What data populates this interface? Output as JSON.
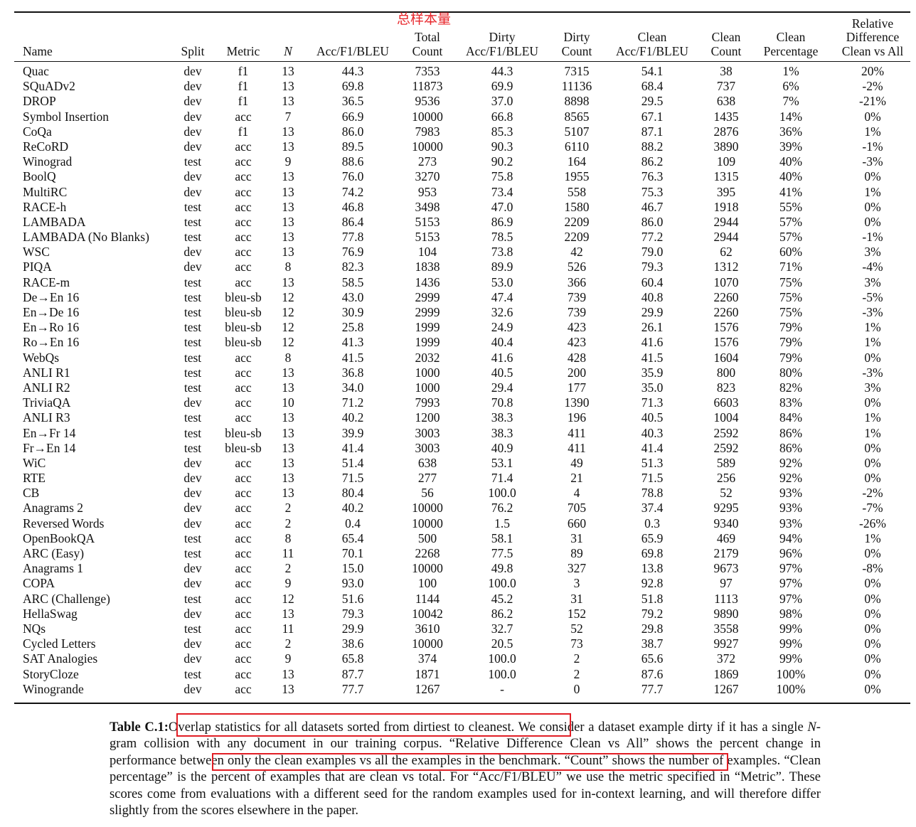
{
  "annotation": "总样本量",
  "columns": [
    {
      "key": "name",
      "lines": [
        "Name"
      ]
    },
    {
      "key": "split",
      "lines": [
        "Split"
      ]
    },
    {
      "key": "metric",
      "lines": [
        "Metric"
      ]
    },
    {
      "key": "n",
      "lines": [
        "N"
      ]
    },
    {
      "key": "acc",
      "lines": [
        "Acc/F1/BLEU"
      ]
    },
    {
      "key": "total",
      "lines": [
        "Total",
        "Count"
      ]
    },
    {
      "key": "dirty_acc",
      "lines": [
        "Dirty",
        "Acc/F1/BLEU"
      ]
    },
    {
      "key": "dirty_count",
      "lines": [
        "Dirty",
        "Count"
      ]
    },
    {
      "key": "clean_acc",
      "lines": [
        "Clean",
        "Acc/F1/BLEU"
      ]
    },
    {
      "key": "clean_count",
      "lines": [
        "Clean",
        "Count"
      ]
    },
    {
      "key": "clean_pct",
      "lines": [
        "Clean",
        "Percentage"
      ]
    },
    {
      "key": "rel_diff",
      "lines": [
        "Relative",
        "Difference",
        "Clean vs All"
      ]
    }
  ],
  "rows": [
    [
      "Quac",
      "dev",
      "f1",
      "13",
      "44.3",
      "7353",
      "44.3",
      "7315",
      "54.1",
      "38",
      "1%",
      "20%"
    ],
    [
      "SQuADv2",
      "dev",
      "f1",
      "13",
      "69.8",
      "11873",
      "69.9",
      "11136",
      "68.4",
      "737",
      "6%",
      "-2%"
    ],
    [
      "DROP",
      "dev",
      "f1",
      "13",
      "36.5",
      "9536",
      "37.0",
      "8898",
      "29.5",
      "638",
      "7%",
      "-21%"
    ],
    [
      "Symbol Insertion",
      "dev",
      "acc",
      "7",
      "66.9",
      "10000",
      "66.8",
      "8565",
      "67.1",
      "1435",
      "14%",
      "0%"
    ],
    [
      "CoQa",
      "dev",
      "f1",
      "13",
      "86.0",
      "7983",
      "85.3",
      "5107",
      "87.1",
      "2876",
      "36%",
      "1%"
    ],
    [
      "ReCoRD",
      "dev",
      "acc",
      "13",
      "89.5",
      "10000",
      "90.3",
      "6110",
      "88.2",
      "3890",
      "39%",
      "-1%"
    ],
    [
      "Winograd",
      "test",
      "acc",
      "9",
      "88.6",
      "273",
      "90.2",
      "164",
      "86.2",
      "109",
      "40%",
      "-3%"
    ],
    [
      "BoolQ",
      "dev",
      "acc",
      "13",
      "76.0",
      "3270",
      "75.8",
      "1955",
      "76.3",
      "1315",
      "40%",
      "0%"
    ],
    [
      "MultiRC",
      "dev",
      "acc",
      "13",
      "74.2",
      "953",
      "73.4",
      "558",
      "75.3",
      "395",
      "41%",
      "1%"
    ],
    [
      "RACE-h",
      "test",
      "acc",
      "13",
      "46.8",
      "3498",
      "47.0",
      "1580",
      "46.7",
      "1918",
      "55%",
      "0%"
    ],
    [
      "LAMBADA",
      "test",
      "acc",
      "13",
      "86.4",
      "5153",
      "86.9",
      "2209",
      "86.0",
      "2944",
      "57%",
      "0%"
    ],
    [
      "LAMBADA (No Blanks)",
      "test",
      "acc",
      "13",
      "77.8",
      "5153",
      "78.5",
      "2209",
      "77.2",
      "2944",
      "57%",
      "-1%"
    ],
    [
      "WSC",
      "dev",
      "acc",
      "13",
      "76.9",
      "104",
      "73.8",
      "42",
      "79.0",
      "62",
      "60%",
      "3%"
    ],
    [
      "PIQA",
      "dev",
      "acc",
      "8",
      "82.3",
      "1838",
      "89.9",
      "526",
      "79.3",
      "1312",
      "71%",
      "-4%"
    ],
    [
      "RACE-m",
      "test",
      "acc",
      "13",
      "58.5",
      "1436",
      "53.0",
      "366",
      "60.4",
      "1070",
      "75%",
      "3%"
    ],
    [
      "De→En 16",
      "test",
      "bleu-sb",
      "12",
      "43.0",
      "2999",
      "47.4",
      "739",
      "40.8",
      "2260",
      "75%",
      "-5%"
    ],
    [
      "En→De 16",
      "test",
      "bleu-sb",
      "12",
      "30.9",
      "2999",
      "32.6",
      "739",
      "29.9",
      "2260",
      "75%",
      "-3%"
    ],
    [
      "En→Ro 16",
      "test",
      "bleu-sb",
      "12",
      "25.8",
      "1999",
      "24.9",
      "423",
      "26.1",
      "1576",
      "79%",
      "1%"
    ],
    [
      "Ro→En 16",
      "test",
      "bleu-sb",
      "12",
      "41.3",
      "1999",
      "40.4",
      "423",
      "41.6",
      "1576",
      "79%",
      "1%"
    ],
    [
      "WebQs",
      "test",
      "acc",
      "8",
      "41.5",
      "2032",
      "41.6",
      "428",
      "41.5",
      "1604",
      "79%",
      "0%"
    ],
    [
      "ANLI R1",
      "test",
      "acc",
      "13",
      "36.8",
      "1000",
      "40.5",
      "200",
      "35.9",
      "800",
      "80%",
      "-3%"
    ],
    [
      "ANLI R2",
      "test",
      "acc",
      "13",
      "34.0",
      "1000",
      "29.4",
      "177",
      "35.0",
      "823",
      "82%",
      "3%"
    ],
    [
      "TriviaQA",
      "dev",
      "acc",
      "10",
      "71.2",
      "7993",
      "70.8",
      "1390",
      "71.3",
      "6603",
      "83%",
      "0%"
    ],
    [
      "ANLI R3",
      "test",
      "acc",
      "13",
      "40.2",
      "1200",
      "38.3",
      "196",
      "40.5",
      "1004",
      "84%",
      "1%"
    ],
    [
      "En→Fr 14",
      "test",
      "bleu-sb",
      "13",
      "39.9",
      "3003",
      "38.3",
      "411",
      "40.3",
      "2592",
      "86%",
      "1%"
    ],
    [
      "Fr→En 14",
      "test",
      "bleu-sb",
      "13",
      "41.4",
      "3003",
      "40.9",
      "411",
      "41.4",
      "2592",
      "86%",
      "0%"
    ],
    [
      "WiC",
      "dev",
      "acc",
      "13",
      "51.4",
      "638",
      "53.1",
      "49",
      "51.3",
      "589",
      "92%",
      "0%"
    ],
    [
      "RTE",
      "dev",
      "acc",
      "13",
      "71.5",
      "277",
      "71.4",
      "21",
      "71.5",
      "256",
      "92%",
      "0%"
    ],
    [
      "CB",
      "dev",
      "acc",
      "13",
      "80.4",
      "56",
      "100.0",
      "4",
      "78.8",
      "52",
      "93%",
      "-2%"
    ],
    [
      "Anagrams 2",
      "dev",
      "acc",
      "2",
      "40.2",
      "10000",
      "76.2",
      "705",
      "37.4",
      "9295",
      "93%",
      "-7%"
    ],
    [
      "Reversed Words",
      "dev",
      "acc",
      "2",
      "0.4",
      "10000",
      "1.5",
      "660",
      "0.3",
      "9340",
      "93%",
      "-26%"
    ],
    [
      "OpenBookQA",
      "test",
      "acc",
      "8",
      "65.4",
      "500",
      "58.1",
      "31",
      "65.9",
      "469",
      "94%",
      "1%"
    ],
    [
      "ARC (Easy)",
      "test",
      "acc",
      "11",
      "70.1",
      "2268",
      "77.5",
      "89",
      "69.8",
      "2179",
      "96%",
      "0%"
    ],
    [
      "Anagrams 1",
      "dev",
      "acc",
      "2",
      "15.0",
      "10000",
      "49.8",
      "327",
      "13.8",
      "9673",
      "97%",
      "-8%"
    ],
    [
      "COPA",
      "dev",
      "acc",
      "9",
      "93.0",
      "100",
      "100.0",
      "3",
      "92.8",
      "97",
      "97%",
      "0%"
    ],
    [
      "ARC (Challenge)",
      "test",
      "acc",
      "12",
      "51.6",
      "1144",
      "45.2",
      "31",
      "51.8",
      "1113",
      "97%",
      "0%"
    ],
    [
      "HellaSwag",
      "dev",
      "acc",
      "13",
      "79.3",
      "10042",
      "86.2",
      "152",
      "79.2",
      "9890",
      "98%",
      "0%"
    ],
    [
      "NQs",
      "test",
      "acc",
      "11",
      "29.9",
      "3610",
      "32.7",
      "52",
      "29.8",
      "3558",
      "99%",
      "0%"
    ],
    [
      "Cycled Letters",
      "dev",
      "acc",
      "2",
      "38.6",
      "10000",
      "20.5",
      "73",
      "38.7",
      "9927",
      "99%",
      "0%"
    ],
    [
      "SAT Analogies",
      "dev",
      "acc",
      "9",
      "65.8",
      "374",
      "100.0",
      "2",
      "65.6",
      "372",
      "99%",
      "0%"
    ],
    [
      "StoryCloze",
      "test",
      "acc",
      "13",
      "87.7",
      "1871",
      "100.0",
      "2",
      "87.6",
      "1869",
      "100%",
      "0%"
    ],
    [
      "Winogrande",
      "dev",
      "acc",
      "13",
      "77.7",
      "1267",
      "-",
      "0",
      "77.7",
      "1267",
      "100%",
      "0%"
    ]
  ],
  "caption": {
    "label": "Table C.1:",
    "highlight1": "Overlap statistics for all datasets sorted from dirtiest to cleanest.",
    "text1": " We consider a dataset example dirty if it has a single ",
    "n_symbol": "N",
    "text2": "-gram collision with any document in our training corpus. “Relative Difference Clean vs All” shows the percent change in ",
    "highlight2": "performance between only the clean examples vs all the examples in the benchmark.",
    "text3": " “Count” shows the number of examples. “Clean percentage” is the percent of examples that are clean vs total. For “Acc/F1/BLEU” we use the metric specified in “Metric”. These scores come from evaluations with a different seed for the random examples used for in-context learning, and will therefore differ slightly from the scores elsewhere in the paper."
  }
}
